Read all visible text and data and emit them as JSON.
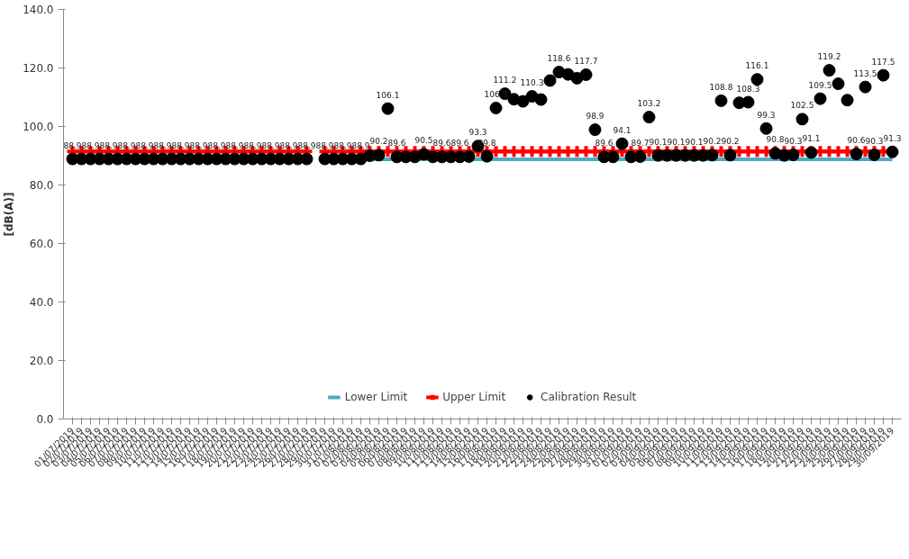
{
  "chart_data": {
    "type": "scatter",
    "ylabel": "[dB(A)]",
    "ylim": [
      0,
      140
    ],
    "yticks": [
      {
        "value": 0,
        "label": "0.0"
      },
      {
        "value": 20,
        "label": "20.0"
      },
      {
        "value": 40,
        "label": "40.0"
      },
      {
        "value": 60,
        "label": "60.0"
      },
      {
        "value": 80,
        "label": "80.0"
      },
      {
        "value": 100,
        "label": "100.0"
      },
      {
        "value": 120,
        "label": "120.0"
      },
      {
        "value": 140,
        "label": "140.0"
      }
    ],
    "legend": "bottom",
    "categories": [
      "01/07/2019",
      "02/07/2019",
      "03/07/2019",
      "04/07/2019",
      "05/07/2019",
      "06/07/2019",
      "07/07/2019",
      "08/07/2019",
      "09/07/2019",
      "10/07/2019",
      "11/07/2019",
      "12/07/2019",
      "13/07/2019",
      "14/07/2019",
      "15/07/2019",
      "16/07/2019",
      "17/07/2019",
      "18/07/2019",
      "19/07/2019",
      "20/07/2019",
      "21/07/2019",
      "22/07/2019",
      "23/07/2019",
      "24/07/2019",
      "25/07/2019",
      "26/07/2019",
      "27/07/2019",
      "28/07/2019",
      "29/07/2019",
      "30/07/2019",
      "31/07/2019",
      "01/08/2019",
      "02/08/2019",
      "03/08/2019",
      "04/08/2019",
      "05/08/2019",
      "06/08/2019",
      "07/08/2019",
      "08/08/2019",
      "09/08/2019",
      "10/08/2019",
      "11/08/2019",
      "12/08/2019",
      "13/08/2019",
      "14/08/2019",
      "15/08/2019",
      "16/08/2019",
      "17/08/2019",
      "18/08/2019",
      "19/08/2019",
      "20/08/2019",
      "21/08/2019",
      "22/08/2019",
      "23/08/2019",
      "24/08/2019",
      "25/08/2019",
      "26/08/2019",
      "27/08/2019",
      "28/08/2019",
      "29/08/2019",
      "30/08/2019",
      "31/08/2019",
      "01/09/2019",
      "02/09/2019",
      "03/09/2019",
      "04/09/2019",
      "05/09/2019",
      "06/09/2019",
      "07/09/2019",
      "08/09/2019",
      "09/09/2019",
      "10/09/2019",
      "11/09/2019",
      "12/09/2019",
      "13/09/2019",
      "14/09/2019",
      "15/09/2019",
      "16/09/2019",
      "17/09/2019",
      "18/09/2019",
      "19/09/2019",
      "20/09/2019",
      "21/09/2019",
      "22/09/2019",
      "23/09/2019",
      "24/09/2019",
      "25/09/2019",
      "26/09/2019",
      "27/09/2019",
      "28/09/2019",
      "29/09/2019",
      "30/09/2019"
    ],
    "series": [
      {
        "name": "Lower Limit",
        "type": "line",
        "color": "#4bacc6",
        "marker": "none",
        "values": [
          null,
          null,
          null,
          null,
          null,
          null,
          null,
          null,
          null,
          null,
          null,
          null,
          null,
          null,
          null,
          null,
          null,
          null,
          null,
          null,
          null,
          null,
          null,
          null,
          null,
          null,
          null,
          null,
          null,
          null,
          null,
          null,
          null,
          88.8,
          88.8,
          88.8,
          88.8,
          88.8,
          88.8,
          88.8,
          88.8,
          88.8,
          88.8,
          88.8,
          88.8,
          88.8,
          88.8,
          88.8,
          88.8,
          88.8,
          88.8,
          88.8,
          88.8,
          88.8,
          88.8,
          88.8,
          88.8,
          88.8,
          88.8,
          88.8,
          88.8,
          88.8,
          88.8,
          88.8,
          88.8,
          88.8,
          88.8,
          88.8,
          88.8,
          88.8,
          88.8,
          88.8,
          88.8,
          88.8,
          88.8,
          88.8,
          88.8,
          88.8,
          88.8,
          88.8,
          88.8,
          88.8,
          88.8,
          88.8,
          88.8,
          88.8,
          88.8,
          88.8,
          88.8,
          88.8,
          88.8,
          88.8
        ]
      },
      {
        "name": "Upper Limit",
        "type": "line",
        "color": "#ff0000",
        "marker": "cross",
        "values": [
          91.5,
          91.5,
          91.5,
          91.5,
          91.5,
          91.5,
          91.5,
          91.5,
          91.5,
          91.5,
          91.5,
          91.5,
          91.5,
          91.5,
          91.5,
          91.5,
          91.5,
          91.5,
          91.5,
          91.5,
          91.5,
          91.5,
          91.5,
          91.5,
          91.5,
          91.5,
          91.5,
          null,
          91.5,
          91.5,
          91.5,
          91.5,
          91.5,
          91.5,
          91.5,
          91.5,
          91.5,
          91.5,
          91.5,
          91.5,
          91.5,
          91.5,
          91.5,
          91.5,
          91.5,
          91.5,
          91.5,
          91.5,
          91.5,
          91.5,
          91.5,
          91.5,
          91.5,
          91.5,
          91.5,
          91.5,
          91.5,
          91.5,
          91.5,
          91.5,
          91.5,
          91.5,
          91.5,
          91.5,
          91.5,
          91.5,
          91.5,
          91.5,
          91.5,
          91.5,
          91.5,
          91.5,
          91.5,
          91.5,
          91.5,
          91.5,
          91.5,
          91.5,
          91.5,
          91.5,
          91.5,
          91.5,
          91.5,
          91.5,
          91.5,
          91.5,
          91.5,
          91.5,
          91.5,
          91.5,
          91.5,
          91.5
        ]
      },
      {
        "name": "Calibration Result",
        "color": "#000000",
        "marker": "circle",
        "value_labels": [
          "88.9",
          null,
          "88.9",
          null,
          "88.9",
          null,
          "88.9",
          null,
          "88.9",
          null,
          "88.9",
          null,
          "88.9",
          null,
          "88.9",
          null,
          "88.9",
          null,
          "88.9",
          null,
          "88.9",
          null,
          "88.9",
          null,
          "88.9",
          null,
          "88.9",
          null,
          "88.9",
          null,
          "88.9",
          null,
          "88.9",
          null,
          "90.2",
          "106.1",
          "89.6",
          null,
          null,
          "90.5",
          null,
          "89.6",
          null,
          "89.6",
          null,
          "93.3",
          "89.8",
          "106.3",
          "111.2",
          null,
          null,
          "110.3",
          null,
          null,
          "118.6",
          null,
          null,
          "117.7",
          "98.9",
          "89.6",
          null,
          "94.1",
          null,
          "89.7",
          "103.2",
          "90.1",
          null,
          "90.1",
          null,
          "90.1",
          null,
          "90.2",
          "108.8",
          "90.2",
          null,
          "108.3",
          "116.1",
          "99.3",
          "90.8",
          null,
          "90.3",
          "102.5",
          "91.1",
          "109.5",
          "119.2",
          null,
          null,
          "90.6",
          "113.5",
          "90.3",
          "117.5",
          "91.3"
        ],
        "values": [
          88.9,
          88.9,
          88.9,
          88.9,
          88.9,
          88.9,
          88.9,
          88.9,
          88.9,
          88.9,
          88.9,
          88.9,
          88.9,
          88.9,
          88.9,
          88.9,
          88.9,
          88.9,
          88.9,
          88.9,
          88.9,
          88.9,
          88.9,
          88.9,
          88.9,
          88.9,
          88.9,
          null,
          88.9,
          88.9,
          88.9,
          88.9,
          88.9,
          90.0,
          90.2,
          106.1,
          89.6,
          89.6,
          89.6,
          90.5,
          89.6,
          89.6,
          89.6,
          89.6,
          89.7,
          93.3,
          89.8,
          106.3,
          111.2,
          109.3,
          108.6,
          110.3,
          109.2,
          115.7,
          118.6,
          117.8,
          116.5,
          117.7,
          98.9,
          89.6,
          89.6,
          94.1,
          89.6,
          89.7,
          103.2,
          90.1,
          90.1,
          90.1,
          90.1,
          90.1,
          90.1,
          90.2,
          108.8,
          90.2,
          108.1,
          108.3,
          116.1,
          99.3,
          90.8,
          90.1,
          90.3,
          102.5,
          91.1,
          109.5,
          119.2,
          114.6,
          109.0,
          90.6,
          113.5,
          90.3,
          117.5,
          91.3
        ]
      }
    ]
  }
}
